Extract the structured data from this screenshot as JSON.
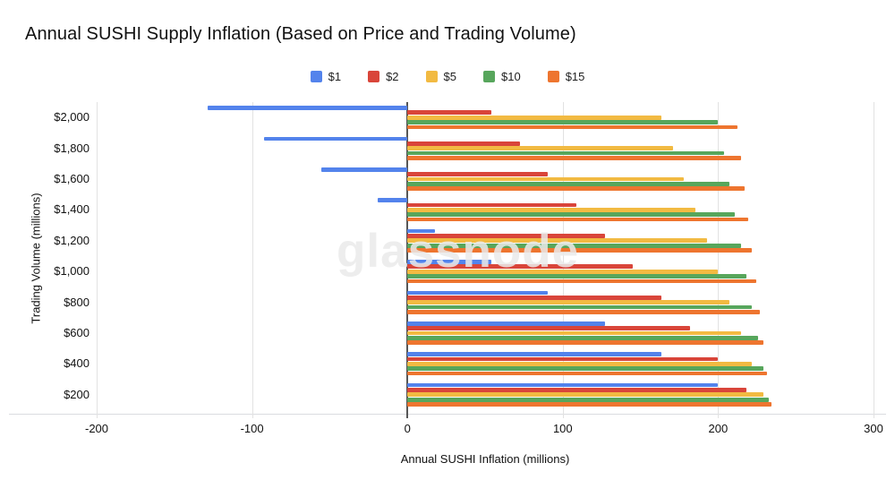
{
  "watermark": "glassnode",
  "chart_data": {
    "type": "bar",
    "orientation": "horizontal",
    "title": "Annual SUSHI Supply Inflation (Based on Price and Trading Volume)",
    "xlabel": "Annual SUSHI Inflation (millions)",
    "ylabel": "Trading Volume (millions)",
    "legend_position": "top",
    "grid": true,
    "xlim": [
      -200,
      300
    ],
    "x_ticks": [
      -200,
      -100,
      0,
      100,
      200,
      300
    ],
    "x_tick_labels": [
      "-200",
      "-100",
      "0",
      "100",
      "200",
      "300"
    ],
    "categories": [
      "$2,000",
      "$1,800",
      "$1,600",
      "$1,400",
      "$1,200",
      "$1,000",
      "$800",
      "$600",
      "$400",
      "$200"
    ],
    "series": [
      {
        "name": "$1",
        "color": "#5383EC",
        "values": [
          -128.5,
          -92,
          -55.5,
          -19,
          17.5,
          54,
          90.5,
          127,
          163.5,
          200
        ]
      },
      {
        "name": "$2",
        "color": "#D9453A",
        "values": [
          54,
          72.25,
          90.5,
          108.75,
          127,
          145.25,
          163.5,
          181.75,
          200,
          218.25
        ]
      },
      {
        "name": "$5",
        "color": "#F2BA42",
        "values": [
          163.5,
          170.8,
          178.1,
          185.4,
          192.7,
          200,
          207.3,
          214.6,
          221.9,
          229.2
        ]
      },
      {
        "name": "$10",
        "color": "#57A65C",
        "values": [
          200,
          203.65,
          207.3,
          210.95,
          214.6,
          218.25,
          221.9,
          225.55,
          229.2,
          232.85
        ]
      },
      {
        "name": "$15",
        "color": "#EE752F",
        "values": [
          212.17,
          214.6,
          217.03,
          219.47,
          221.9,
          224.33,
          226.77,
          229.2,
          231.63,
          234.07
        ]
      }
    ]
  }
}
